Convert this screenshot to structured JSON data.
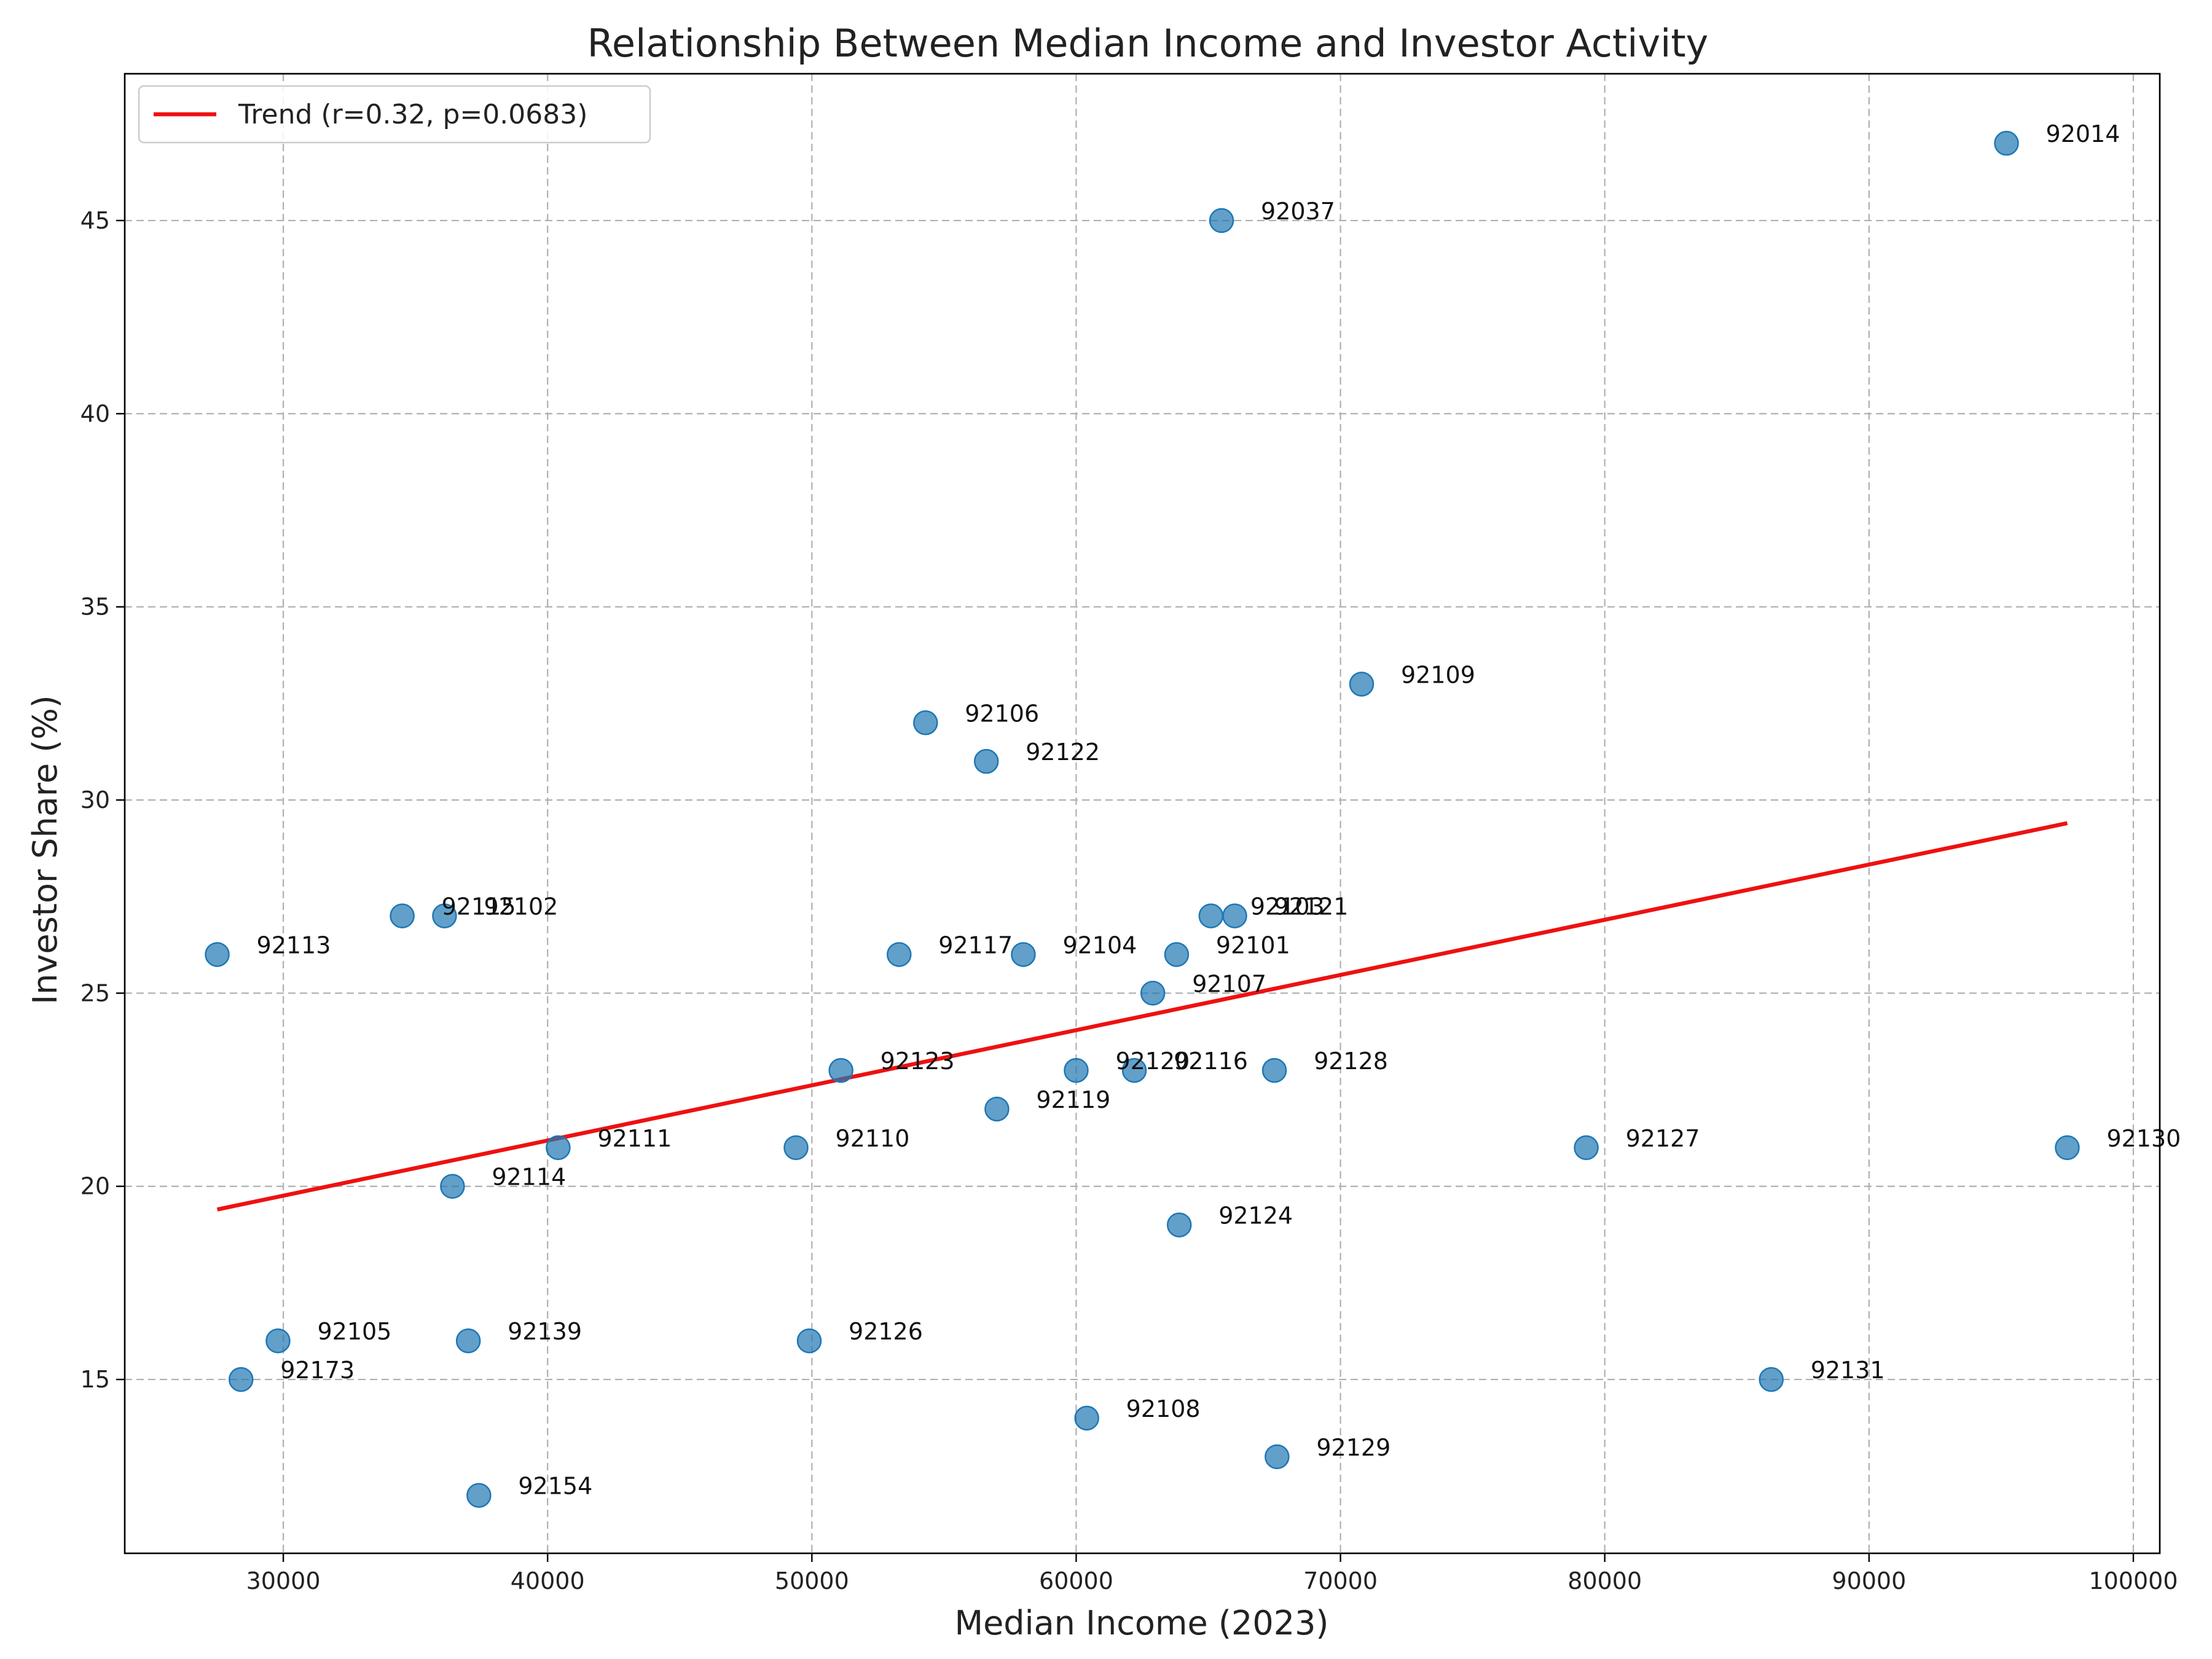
{
  "chart_data": {
    "type": "scatter",
    "title": "Relationship Between Median Income and Investor Activity",
    "xlabel": "Median Income (2023)",
    "ylabel": "Investor Share (%)",
    "xlim": [
      24000,
      101000
    ],
    "ylim": [
      10.5,
      48.8
    ],
    "xticks": [
      30000,
      40000,
      50000,
      60000,
      70000,
      80000,
      90000,
      100000
    ],
    "yticks": [
      15,
      20,
      25,
      30,
      35,
      40,
      45
    ],
    "grid": true,
    "legend": {
      "position": "top-left",
      "entries": [
        "Trend (r=0.32, p=0.0683)"
      ]
    },
    "colors": {
      "points": "#1f77b4",
      "trend": "#ee1111"
    },
    "trend": {
      "x": [
        27500,
        97500
      ],
      "y": [
        19.4,
        29.4
      ]
    },
    "points": [
      {
        "label": "92014",
        "x": 95200,
        "y": 47
      },
      {
        "label": "92037",
        "x": 65500,
        "y": 45
      },
      {
        "label": "92109",
        "x": 70800,
        "y": 33
      },
      {
        "label": "92106",
        "x": 54300,
        "y": 32
      },
      {
        "label": "92122",
        "x": 56600,
        "y": 31
      },
      {
        "label": "92113",
        "x": 27500,
        "y": 26
      },
      {
        "label": "92115",
        "x": 34500,
        "y": 27
      },
      {
        "label": "92102",
        "x": 36100,
        "y": 27
      },
      {
        "label": "92117",
        "x": 53300,
        "y": 26
      },
      {
        "label": "92104",
        "x": 58000,
        "y": 26
      },
      {
        "label": "92101",
        "x": 63800,
        "y": 26
      },
      {
        "label": "92103",
        "x": 65100,
        "y": 27
      },
      {
        "label": "92121",
        "x": 66000,
        "y": 27
      },
      {
        "label": "92107",
        "x": 62900,
        "y": 25
      },
      {
        "label": "92123",
        "x": 51100,
        "y": 23
      },
      {
        "label": "92120",
        "x": 60000,
        "y": 23
      },
      {
        "label": "92116",
        "x": 62200,
        "y": 23
      },
      {
        "label": "92128",
        "x": 67500,
        "y": 23
      },
      {
        "label": "92119",
        "x": 57000,
        "y": 22
      },
      {
        "label": "92111",
        "x": 40400,
        "y": 21
      },
      {
        "label": "92110",
        "x": 49400,
        "y": 21
      },
      {
        "label": "92127",
        "x": 79300,
        "y": 21
      },
      {
        "label": "92130",
        "x": 97500,
        "y": 21
      },
      {
        "label": "92114",
        "x": 36400,
        "y": 20
      },
      {
        "label": "92124",
        "x": 63900,
        "y": 19
      },
      {
        "label": "92105",
        "x": 29800,
        "y": 16
      },
      {
        "label": "92139",
        "x": 37000,
        "y": 16
      },
      {
        "label": "92126",
        "x": 49900,
        "y": 16
      },
      {
        "label": "92173",
        "x": 28400,
        "y": 15
      },
      {
        "label": "92131",
        "x": 86300,
        "y": 15
      },
      {
        "label": "92108",
        "x": 60400,
        "y": 14
      },
      {
        "label": "92129",
        "x": 67600,
        "y": 13
      },
      {
        "label": "92154",
        "x": 37400,
        "y": 12
      }
    ]
  }
}
